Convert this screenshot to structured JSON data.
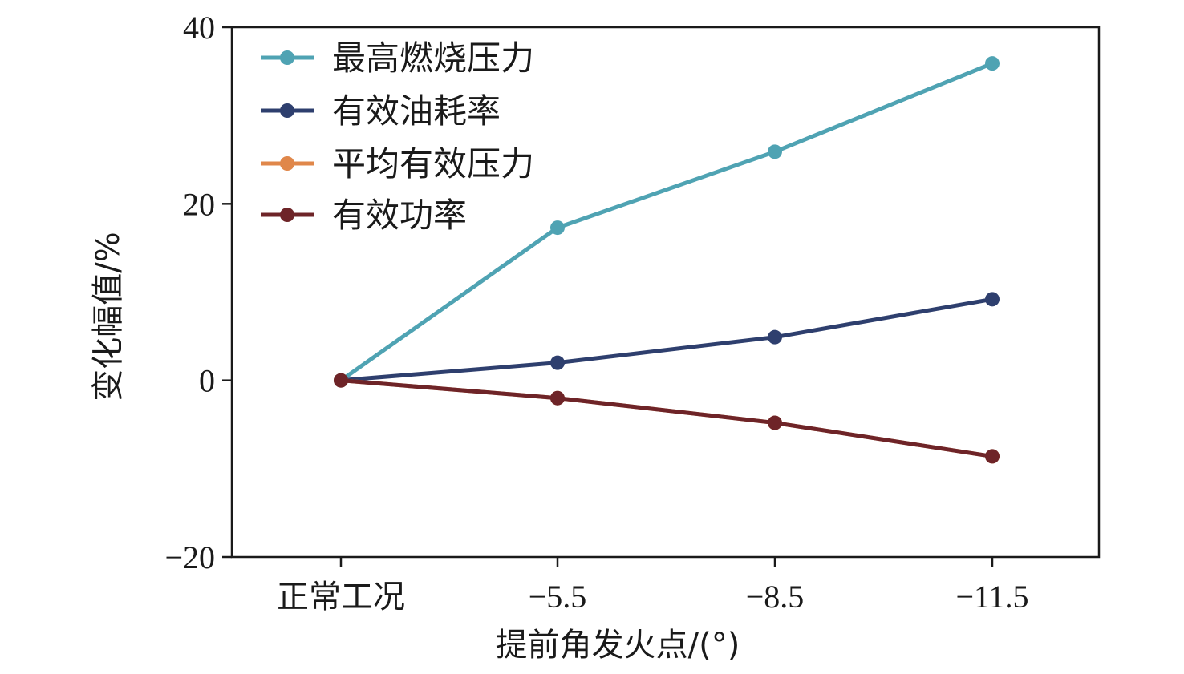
{
  "chart_data": {
    "type": "line",
    "categories": [
      "正常工况",
      "−5.5",
      "−8.5",
      "−11.5"
    ],
    "series": [
      {
        "name": "最高燃烧压力",
        "color": "#4fa3b3",
        "values": [
          0,
          17.3,
          25.9,
          35.9
        ]
      },
      {
        "name": "有效油耗率",
        "color": "#2e3f6e",
        "values": [
          0,
          2.0,
          4.9,
          9.2
        ]
      },
      {
        "name": "平均有效压力",
        "color": "#e0874a",
        "values": [
          0,
          -2.0,
          -4.8,
          -8.6
        ]
      },
      {
        "name": "有效功率",
        "color": "#6e2428",
        "values": [
          0,
          -2.0,
          -4.8,
          -8.6
        ]
      }
    ],
    "xlabel": "提前角发火点/(°)",
    "ylabel": "变化幅值/%",
    "ylim": [
      -20,
      40
    ],
    "yticks": [
      -20,
      0,
      20,
      40
    ],
    "ytick_labels": [
      "−20",
      "0",
      "20",
      "40"
    ],
    "grid": false,
    "legend_position": "top-left"
  }
}
